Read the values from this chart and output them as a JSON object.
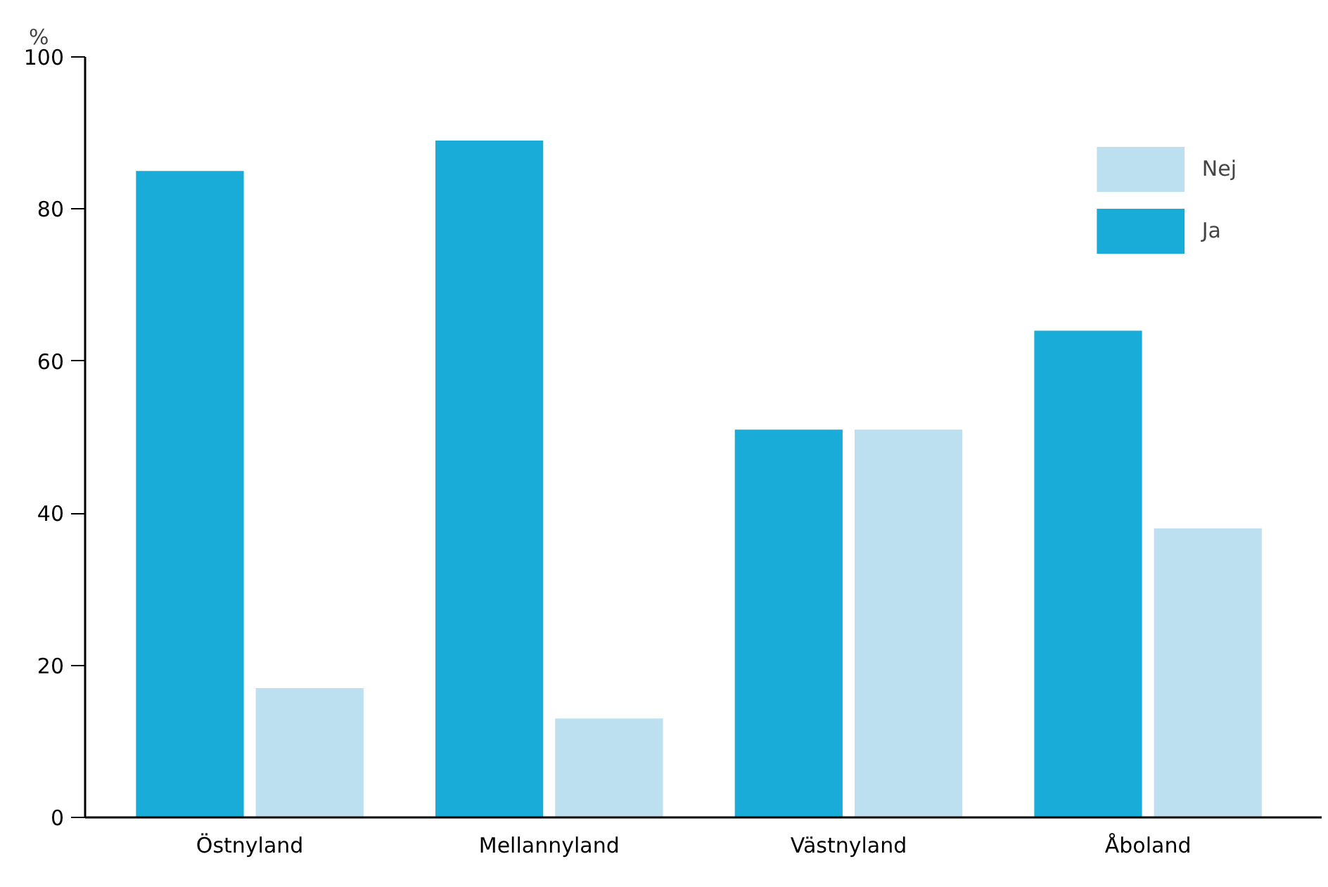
{
  "chart_data": {
    "type": "bar",
    "ylabel": "%",
    "categories": [
      "Östnyland",
      "Mellannyland",
      "Västnyland",
      "Åboland"
    ],
    "series": [
      {
        "name": "Ja",
        "color": "#19acd9",
        "values": [
          85,
          89,
          51,
          64
        ]
      },
      {
        "name": "Nej",
        "color": "#bce0f0",
        "values": [
          17,
          13,
          51,
          38
        ]
      }
    ],
    "ylim": [
      0,
      100
    ],
    "yticks": [
      0,
      20,
      40,
      60,
      80,
      100
    ],
    "grid": false,
    "legend": "top right"
  }
}
